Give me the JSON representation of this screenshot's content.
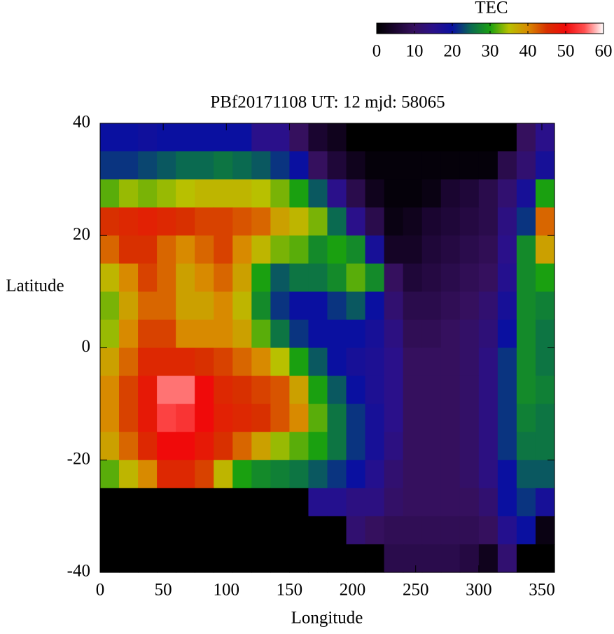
{
  "chart_data": {
    "type": "heatmap",
    "title": "PBf20171108  UT: 12  mjd: 58065",
    "xlabel": "Longitude",
    "ylabel": "Latitude",
    "xlim": [
      0,
      360
    ],
    "xticks": [
      0,
      50,
      100,
      150,
      200,
      250,
      300,
      350
    ],
    "ylim": [
      -40,
      40
    ],
    "yticks": [
      -40,
      -20,
      0,
      20,
      40
    ],
    "x": [
      7.5,
      22.5,
      37.5,
      52.5,
      67.5,
      82.5,
      97.5,
      112.5,
      127.5,
      142.5,
      157.5,
      172.5,
      187.5,
      202.5,
      217.5,
      232.5,
      247.5,
      262.5,
      277.5,
      292.5,
      307.5,
      322.5,
      337.5,
      352.5
    ],
    "y": [
      37.5,
      32.5,
      27.5,
      22.5,
      17.5,
      12.5,
      7.5,
      2.5,
      -2.5,
      -7.5,
      -12.5,
      -17.5,
      -22.5,
      -27.5,
      -32.5,
      -37.5
    ],
    "values": [
      [
        20,
        20,
        19,
        20,
        20,
        20,
        20,
        20,
        15,
        15,
        10,
        5,
        3,
        0,
        0,
        0,
        0,
        0,
        0,
        0,
        0,
        0,
        10,
        15
      ],
      [
        22,
        22,
        23,
        24,
        25,
        25,
        26,
        25,
        24,
        22,
        20,
        10,
        6,
        3,
        1,
        1,
        1,
        1,
        1,
        1,
        1,
        8,
        12,
        18
      ],
      [
        32,
        34,
        33,
        34,
        35,
        36,
        36,
        36,
        35,
        33,
        30,
        24,
        15,
        8,
        3,
        1,
        1,
        2,
        5,
        6,
        8,
        12,
        18,
        30
      ],
      [
        45,
        46,
        47,
        46,
        45,
        44,
        44,
        43,
        42,
        38,
        36,
        33,
        25,
        15,
        8,
        2,
        3,
        5,
        6,
        7,
        8,
        14,
        22,
        42
      ],
      [
        42,
        45,
        45,
        42,
        40,
        42,
        44,
        40,
        36,
        33,
        32,
        28,
        30,
        28,
        18,
        4,
        4,
        6,
        7,
        8,
        9,
        15,
        28,
        38
      ],
      [
        36,
        40,
        44,
        42,
        38,
        40,
        42,
        38,
        30,
        24,
        26,
        26,
        28,
        32,
        28,
        10,
        6,
        7,
        8,
        9,
        10,
        16,
        28,
        30
      ],
      [
        33,
        38,
        42,
        42,
        38,
        38,
        40,
        36,
        28,
        22,
        20,
        20,
        22,
        24,
        20,
        12,
        8,
        8,
        9,
        10,
        12,
        18,
        28,
        27
      ],
      [
        34,
        40,
        44,
        44,
        40,
        40,
        40,
        38,
        32,
        26,
        22,
        20,
        20,
        20,
        18,
        14,
        9,
        9,
        10,
        11,
        13,
        20,
        28,
        26
      ],
      [
        38,
        42,
        46,
        46,
        46,
        45,
        44,
        42,
        40,
        35,
        30,
        24,
        20,
        18,
        17,
        15,
        10,
        10,
        10,
        11,
        14,
        22,
        28,
        26
      ],
      [
        40,
        44,
        48,
        56,
        56,
        50,
        46,
        45,
        44,
        43,
        38,
        30,
        24,
        20,
        17,
        15,
        10,
        10,
        10,
        11,
        14,
        22,
        28,
        27
      ],
      [
        40,
        44,
        48,
        54,
        53,
        50,
        47,
        46,
        45,
        43,
        40,
        32,
        26,
        22,
        18,
        15,
        10,
        10,
        10,
        11,
        14,
        22,
        27,
        26
      ],
      [
        38,
        42,
        46,
        50,
        50,
        48,
        45,
        42,
        38,
        34,
        32,
        30,
        26,
        22,
        18,
        14,
        10,
        10,
        10,
        11,
        14,
        22,
        26,
        26
      ],
      [
        32,
        36,
        40,
        46,
        46,
        44,
        36,
        30,
        28,
        27,
        26,
        24,
        22,
        20,
        16,
        12,
        10,
        10,
        10,
        11,
        14,
        20,
        24,
        24
      ],
      [
        0,
        0,
        0,
        0,
        0,
        0,
        0,
        0,
        0,
        0,
        0,
        16,
        16,
        14,
        14,
        11,
        10,
        10,
        10,
        10,
        12,
        20,
        22,
        18
      ],
      [
        0,
        0,
        0,
        0,
        0,
        0,
        0,
        0,
        0,
        0,
        0,
        0,
        0,
        12,
        10,
        9,
        9,
        9,
        9,
        9,
        10,
        16,
        20,
        2
      ],
      [
        0,
        0,
        0,
        0,
        0,
        0,
        0,
        0,
        0,
        0,
        0,
        0,
        0,
        0,
        0,
        8,
        8,
        8,
        8,
        7,
        3,
        12,
        0,
        0
      ]
    ],
    "colorbar": {
      "label": "TEC",
      "lim": [
        0,
        60
      ],
      "ticks": [
        0,
        10,
        20,
        30,
        40,
        50,
        60
      ],
      "colormap": [
        "#000000",
        "#1a0530",
        "#35105e",
        "#2a108a",
        "#0a10a0",
        "#0a6a50",
        "#1aa010",
        "#b8c000",
        "#d88a00",
        "#d83000",
        "#f00a0a",
        "#ff5050",
        "#ffffff"
      ]
    }
  }
}
